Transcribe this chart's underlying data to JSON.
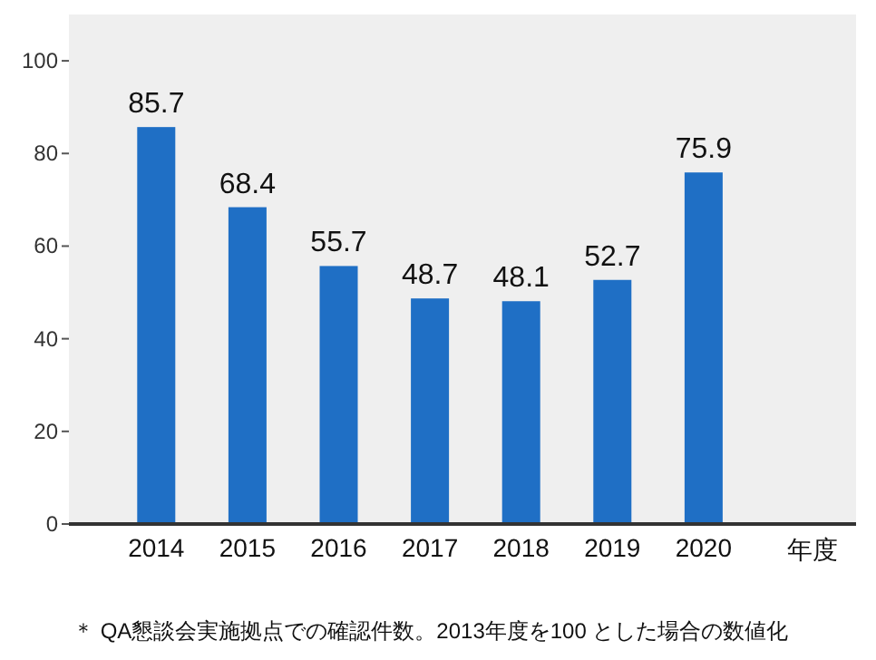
{
  "chart_data": {
    "type": "bar",
    "categories": [
      "2014",
      "2015",
      "2016",
      "2017",
      "2018",
      "2019",
      "2020"
    ],
    "values": [
      85.7,
      68.4,
      55.7,
      48.7,
      48.1,
      52.7,
      75.9
    ],
    "color": "#1f6fc5",
    "ylim": [
      0,
      110
    ],
    "yticks": [
      0,
      20,
      40,
      60,
      80,
      100
    ],
    "data_labels": true,
    "xlabel": "年度",
    "annotations": [
      "＊ QA懇談会実施拠点での確認件数。2013年度を100 とした場合の数値化"
    ]
  }
}
